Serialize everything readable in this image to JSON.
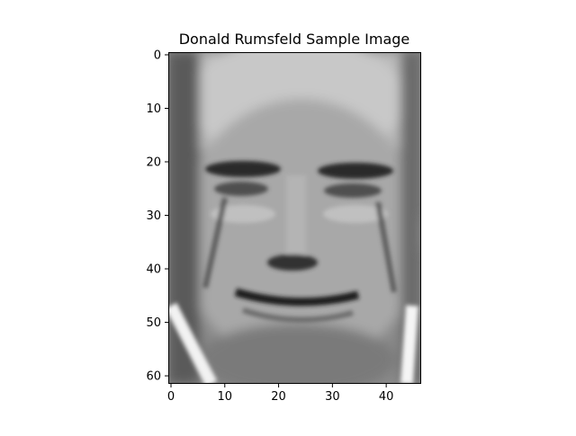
{
  "figure": {
    "background": "#ffffff"
  },
  "chart_data": {
    "type": "heatmap",
    "title": "Donald Rumsfeld Sample Image",
    "xlabel": "",
    "ylabel": "",
    "colormap": "gray",
    "shape": [
      62,
      47
    ],
    "xlim": [
      -0.5,
      46.5
    ],
    "ylim": [
      61.5,
      -0.5
    ],
    "x_ticks": [
      0,
      10,
      20,
      30,
      40
    ],
    "y_ticks": [
      0,
      10,
      20,
      30,
      40,
      50,
      60
    ],
    "grid": false,
    "legend": "none",
    "content": "grayscale face photograph, 47 columns by 62 rows"
  }
}
